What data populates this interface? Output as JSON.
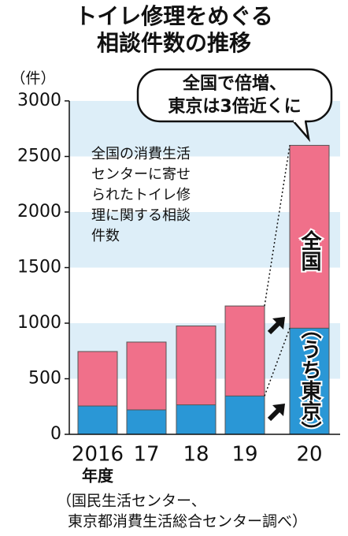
{
  "chart_data": {
    "type": "bar",
    "title_lines": [
      "トイレ修理をめぐる",
      "相談件数の推移"
    ],
    "y_unit": "（件）",
    "categories": [
      "2016",
      "17",
      "18",
      "19",
      "20"
    ],
    "x_axis_label": "年度",
    "series": [
      {
        "name": "全国",
        "color": "#f0708a",
        "values": [
          745,
          830,
          975,
          1155,
          2600
        ]
      },
      {
        "name": "（うち東京）",
        "color": "#2a97d6",
        "values": [
          255,
          220,
          265,
          345,
          955
        ]
      }
    ],
    "ylim": [
      0,
      3000
    ],
    "yticks": [
      0,
      500,
      1000,
      1500,
      2000,
      2500,
      3000
    ],
    "bands": true,
    "band_color": "#ddeef8",
    "callout_lines": [
      "全国で倍増、",
      "東京は3倍近くに"
    ],
    "note_lines": [
      "全国の消費生活",
      "センターに寄せ",
      "られたトイレ修",
      "理に関する相談",
      "件数"
    ],
    "source_lines": [
      "（国民生活センター、",
      "東京都消費生活総合センター調べ）"
    ]
  }
}
